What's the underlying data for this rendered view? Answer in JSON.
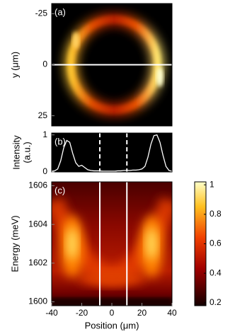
{
  "chart_data": [
    {
      "type": "heatmap",
      "panel_label": "(a)",
      "ylabel": "y (μm)",
      "ylim": [
        30,
        -30
      ],
      "yticks": [
        -25,
        0,
        25
      ],
      "hline": 0
    },
    {
      "type": "line",
      "panel_label": "(b)",
      "ylabel": [
        "Intensity",
        "(a.u.)"
      ],
      "xlim": [
        -40,
        40
      ],
      "ylim": [
        0,
        1.05
      ],
      "yticks": [
        0,
        1
      ],
      "color": "#ffffff",
      "vlines": [
        -8,
        10
      ],
      "x": [
        -40,
        -38,
        -36,
        -34,
        -32,
        -30,
        -28,
        -26,
        -24,
        -22,
        -20,
        -18,
        -16,
        -14,
        -12,
        -10,
        -8,
        -6,
        -4,
        -2,
        0,
        2,
        4,
        6,
        8,
        10,
        12,
        14,
        16,
        18,
        20,
        22,
        24,
        26,
        28,
        30,
        32,
        34,
        36,
        38,
        40
      ],
      "values": [
        0.02,
        0.03,
        0.08,
        0.3,
        0.65,
        0.85,
        0.8,
        0.5,
        0.25,
        0.15,
        0.18,
        0.12,
        0.06,
        0.04,
        0.03,
        0.03,
        0.03,
        0.02,
        0.02,
        0.02,
        0.02,
        0.02,
        0.03,
        0.03,
        0.04,
        0.04,
        0.04,
        0.05,
        0.05,
        0.06,
        0.08,
        0.15,
        0.4,
        0.75,
        0.98,
        1.0,
        0.8,
        0.45,
        0.15,
        0.04,
        0.02
      ]
    },
    {
      "type": "heatmap",
      "panel_label": "(c)",
      "xlabel": "Position (μm)",
      "ylabel": "Energy (meV)",
      "xlim": [
        -40,
        40
      ],
      "xticks": [
        -40,
        -20,
        0,
        20,
        40
      ],
      "ylim": [
        1599.8,
        1606.2
      ],
      "yticks": [
        1600,
        1602,
        1604,
        1606
      ],
      "vlines": [
        -8,
        10
      ],
      "colorbar": {
        "lim": [
          0.18,
          1.02
        ],
        "ticks": [
          0.2,
          0.4,
          0.6,
          0.8,
          1
        ]
      }
    }
  ]
}
